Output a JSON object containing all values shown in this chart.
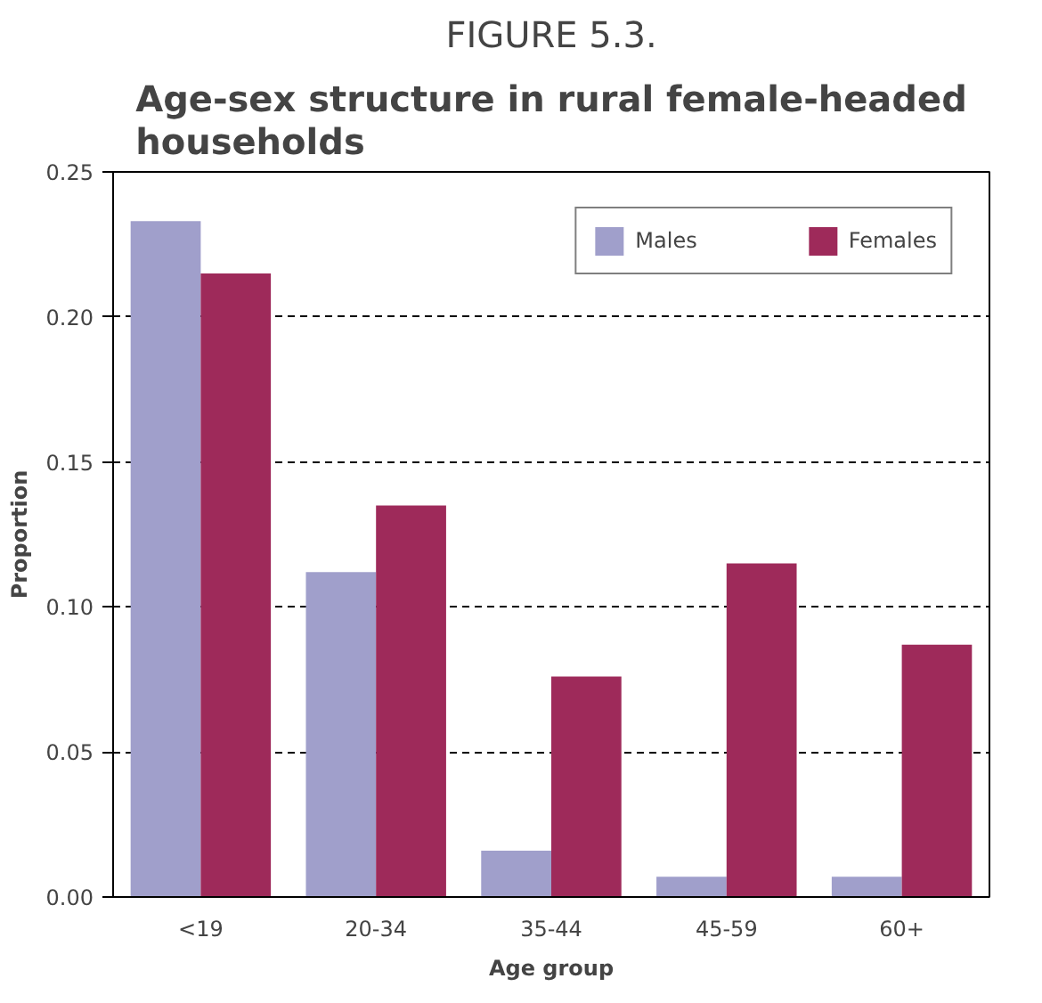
{
  "chart_data": {
    "type": "bar",
    "title": "FIGURE 5.3.",
    "subtitle": "Age-sex structure in rural female-headed households",
    "xlabel": "Age group",
    "ylabel": "Proportion",
    "categories": [
      "<19",
      "20-34",
      "35-44",
      "45-59",
      "60+"
    ],
    "series": [
      {
        "name": "Males",
        "color": "#a09fcb",
        "values": [
          0.233,
          0.112,
          0.016,
          0.007,
          0.007
        ]
      },
      {
        "name": "Females",
        "color": "#9e2a5a",
        "values": [
          0.215,
          0.135,
          0.076,
          0.115,
          0.087
        ]
      }
    ],
    "ylim": [
      0,
      0.25
    ],
    "yticks": [
      {
        "value": 0,
        "label": "0.00"
      },
      {
        "value": 0.05,
        "label": "0.05"
      },
      {
        "value": 0.1,
        "label": "0.10"
      },
      {
        "value": 0.15,
        "label": "0.15"
      },
      {
        "value": 0.2,
        "label": "0.20"
      },
      {
        "value": 0.25,
        "label": "0.25"
      }
    ],
    "grid": "y",
    "legend": "top right"
  }
}
